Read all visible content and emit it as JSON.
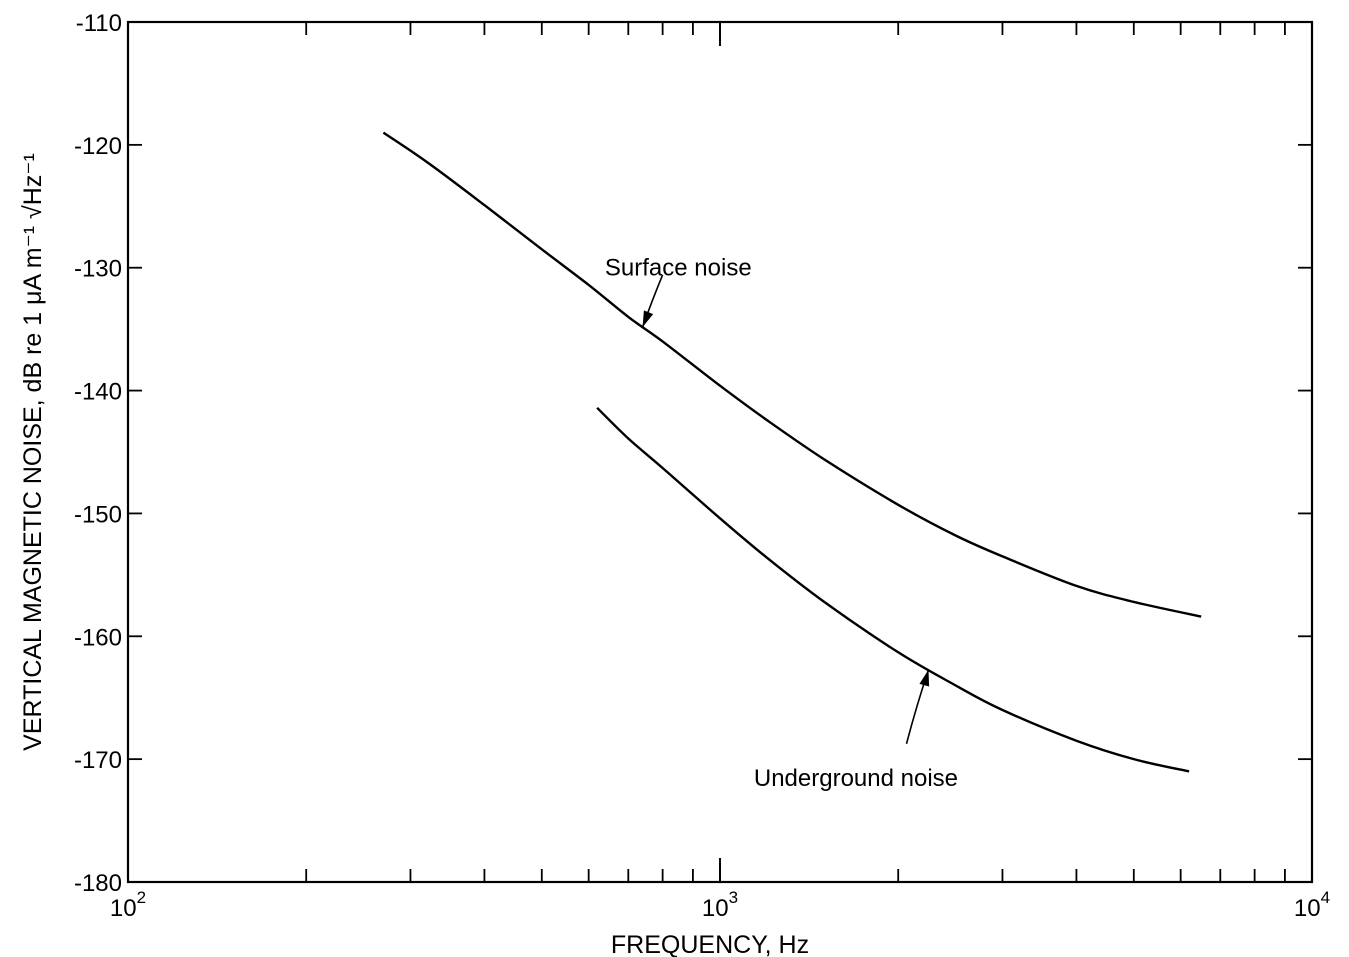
{
  "chart_data": {
    "type": "line",
    "title": "",
    "xlabel": "FREQUENCY, Hz",
    "ylabel": "VERTICAL MAGNETIC NOISE,  dB re 1 μA m⁻¹ √Hz⁻¹",
    "x_scale": "log",
    "xlim": [
      100,
      10000
    ],
    "ylim": [
      -180,
      -110
    ],
    "y_ticks": [
      -110,
      -120,
      -130,
      -140,
      -150,
      -160,
      -170,
      -180
    ],
    "x_tick_labels": [
      {
        "base": "10",
        "exp": "2",
        "value": 100
      },
      {
        "base": "10",
        "exp": "3",
        "value": 1000
      },
      {
        "base": "10",
        "exp": "4",
        "value": 10000
      }
    ],
    "grid": false,
    "series": [
      {
        "name": "Surface noise",
        "x": [
          270,
          320,
          400,
          500,
          600,
          700,
          800,
          1000,
          1200,
          1500,
          2000,
          2500,
          3000,
          4000,
          5000,
          6500
        ],
        "y": [
          -119,
          -121.4,
          -124.9,
          -128.5,
          -131.4,
          -134.0,
          -136.0,
          -139.6,
          -142.4,
          -145.6,
          -149.3,
          -151.8,
          -153.5,
          -155.9,
          -157.2,
          -158.4
        ]
      },
      {
        "name": "Underground noise",
        "x": [
          620,
          700,
          800,
          1000,
          1200,
          1500,
          2000,
          2500,
          3000,
          4000,
          5000,
          6200
        ],
        "y": [
          -141.4,
          -143.9,
          -146.3,
          -150.4,
          -153.6,
          -157.2,
          -161.3,
          -164.0,
          -166.0,
          -168.5,
          -170.0,
          -171.0
        ]
      }
    ],
    "annotations": [
      {
        "text": "Surface noise",
        "series": "Surface noise",
        "at_x": 740,
        "label_x": 900
      },
      {
        "text": "Underground noise",
        "series": "Underground noise",
        "at_x": 2250,
        "label_x": 1750
      }
    ]
  }
}
